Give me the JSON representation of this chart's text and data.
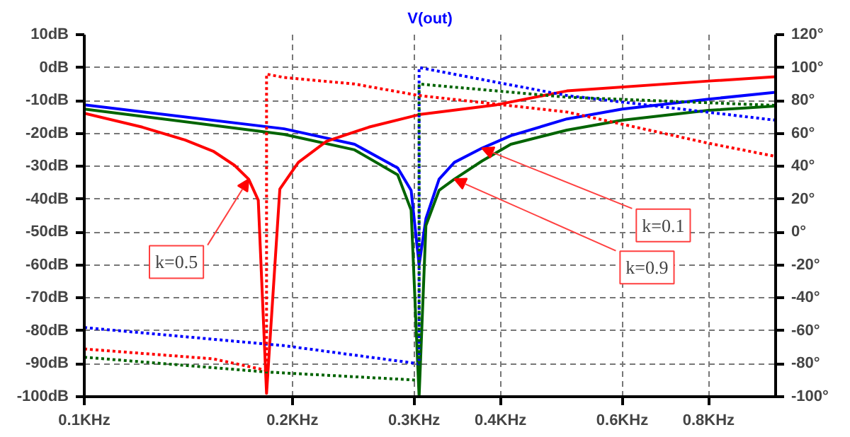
{
  "chart_data": {
    "type": "line",
    "title": "V(out)",
    "xlim": [
      0.1,
      1.0
    ],
    "ylim": [
      -100,
      10
    ],
    "y2lim": [
      -100,
      120
    ],
    "log": "x",
    "grid": true,
    "xticks": [
      {
        "value": 0.1,
        "label": "0.1KHz"
      },
      {
        "value": 0.2,
        "label": "0.2KHz"
      },
      {
        "value": 0.3,
        "label": "0.3KHz"
      },
      {
        "value": 0.4,
        "label": "0.4KHz"
      },
      {
        "value": 0.6,
        "label": "0.6KHz"
      },
      {
        "value": 0.8,
        "label": "0.8KHz"
      }
    ],
    "yticks": [
      {
        "value": 10,
        "label": "10dB"
      },
      {
        "value": 0,
        "label": "0dB"
      },
      {
        "value": -10,
        "label": "-10dB"
      },
      {
        "value": -20,
        "label": "-20dB"
      },
      {
        "value": -30,
        "label": "-30dB"
      },
      {
        "value": -40,
        "label": "-40dB"
      },
      {
        "value": -50,
        "label": "-50dB"
      },
      {
        "value": -60,
        "label": "-60dB"
      },
      {
        "value": -70,
        "label": "-70dB"
      },
      {
        "value": -80,
        "label": "-80dB"
      },
      {
        "value": -90,
        "label": "-90dB"
      },
      {
        "value": -100,
        "label": "-100dB"
      }
    ],
    "y2ticks": [
      {
        "value": 120,
        "label": "120°"
      },
      {
        "value": 100,
        "label": "100°"
      },
      {
        "value": 80,
        "label": "80°"
      },
      {
        "value": 60,
        "label": "60°"
      },
      {
        "value": 40,
        "label": "40°"
      },
      {
        "value": 20,
        "label": "20°"
      },
      {
        "value": 0,
        "label": "0°"
      },
      {
        "value": -20,
        "label": "-20°"
      },
      {
        "value": -40,
        "label": "-40°"
      },
      {
        "value": -60,
        "label": "-60°"
      },
      {
        "value": -80,
        "label": "-80°"
      },
      {
        "value": -100,
        "label": "-100°"
      }
    ],
    "series": [
      {
        "color": "#0000ff",
        "line_style": "solid",
        "x": [
          0.1,
          0.1945,
          0.246,
          0.284,
          0.297,
          0.305,
          0.312,
          0.326,
          0.343,
          0.376,
          0.414,
          0.499,
          0.6,
          0.8,
          1.0
        ],
        "values": [
          -11.3,
          -18.6,
          -23.3,
          -30.5,
          -37.3,
          -60,
          -45.9,
          -33.9,
          -28.8,
          -24.5,
          -20.7,
          -15.6,
          -12.6,
          -9.6,
          -7.5
        ]
      },
      {
        "color": "#006400",
        "line_style": "solid",
        "x": [
          0.1,
          0.1945,
          0.246,
          0.284,
          0.297,
          0.305,
          0.312,
          0.326,
          0.343,
          0.376,
          0.414,
          0.499,
          0.6,
          0.8,
          1.0
        ],
        "values": [
          -12.6,
          -20.3,
          -25.0,
          -32.6,
          -43.3,
          -100,
          -48,
          -37.3,
          -33.9,
          -28.4,
          -23.3,
          -19,
          -16,
          -13,
          -11.7
        ]
      },
      {
        "color": "#ff0000",
        "line_style": "solid",
        "x": [
          0.1,
          0.1213,
          0.1398,
          0.1536,
          0.1649,
          0.1729,
          0.1785,
          0.1835,
          0.1918,
          0.204,
          0.224,
          0.258,
          0.305,
          0.395,
          0.499,
          0.8,
          1.0
        ],
        "values": [
          -13.9,
          -18.1,
          -22,
          -25.4,
          -29.7,
          -33.9,
          -40.3,
          -99,
          -36.9,
          -28.8,
          -22.4,
          -18.1,
          -14.3,
          -11.3,
          -7.1,
          -4.1,
          -2.8
        ]
      },
      {
        "color": "#0000ff",
        "line_style": "dotted",
        "axis": "y2",
        "x": [
          0.1,
          0.1945,
          0.305,
          0.305,
          0.499,
          1.0
        ],
        "values": [
          -58,
          -69,
          -80,
          100,
          83,
          68
        ]
      },
      {
        "color": "#006400",
        "line_style": "dotted",
        "axis": "y2",
        "x": [
          0.1,
          0.1835,
          0.305,
          0.305,
          0.499,
          1.0
        ],
        "values": [
          -76,
          -85,
          -90,
          90,
          82,
          77
        ]
      },
      {
        "color": "#ff0000",
        "line_style": "dotted",
        "axis": "y2",
        "x": [
          0.1,
          0.1536,
          0.1835,
          0.1835,
          0.1945,
          0.246,
          0.305,
          0.499,
          0.8,
          1.0
        ],
        "values": [
          -71,
          -77,
          -84,
          96,
          94,
          90,
          83,
          73,
          54,
          46
        ]
      }
    ],
    "annotations": [
      {
        "text": "k=0.5",
        "x": 0.1729,
        "y": -33.9
      },
      {
        "text": "k=0.1",
        "x": 0.376,
        "y": -24.5
      },
      {
        "text": "k=0.9",
        "x": 0.343,
        "y": -33.9
      }
    ]
  }
}
